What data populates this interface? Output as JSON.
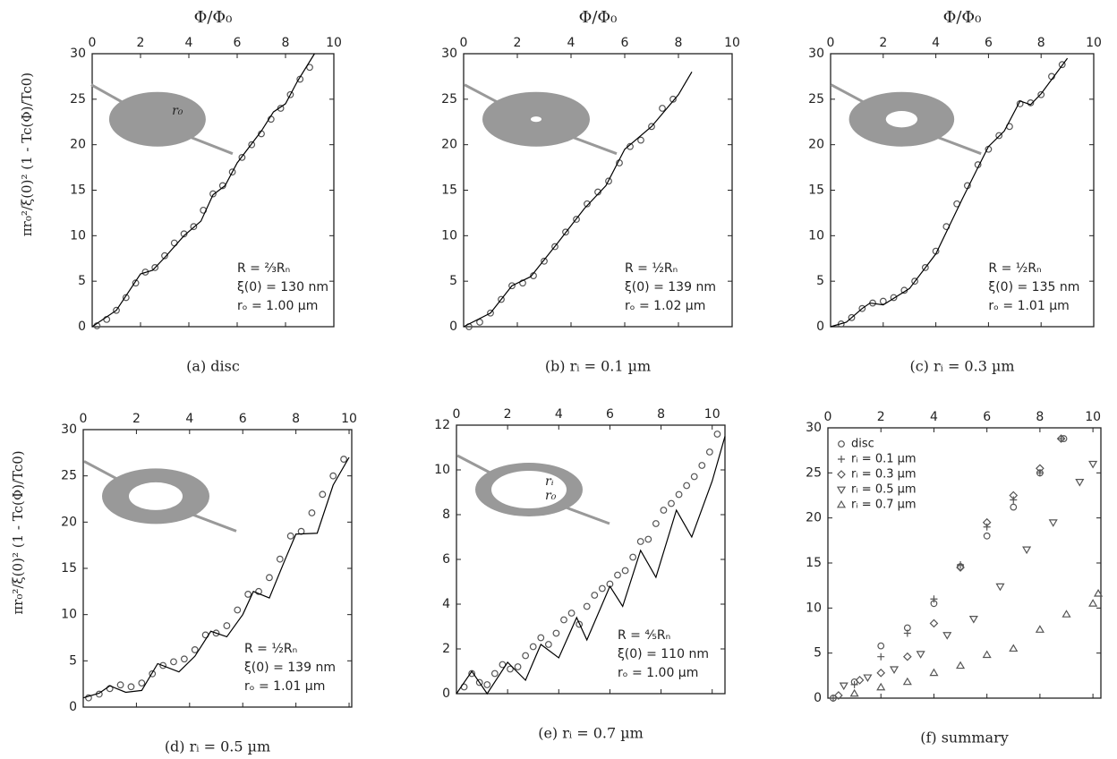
{
  "chart_data": [
    {
      "type": "scatter",
      "title": "Φ/Φ₀",
      "ylabel": "πr₀²/ξ(0)² (1 - Tc(Φ)/Tc0)",
      "caption": "(a) disc",
      "annotations": [
        "R = ⅔Rₙ",
        "ξ(0) = 130 nm",
        "rₒ = 1.00 µm"
      ],
      "inset_labels": [
        "r₀"
      ],
      "xlim": [
        0,
        10
      ],
      "ylim": [
        0,
        30
      ],
      "xticks": [
        0,
        2,
        4,
        6,
        8,
        10
      ],
      "yticks": [
        0,
        5,
        10,
        15,
        20,
        25,
        30
      ],
      "series": [
        {
          "color": "#555",
          "style": "markers",
          "marker": "circle",
          "x": [
            0.2,
            0.6,
            1,
            1.4,
            1.8,
            2.2,
            2.6,
            3,
            3.4,
            3.8,
            4.2,
            4.6,
            5,
            5.4,
            5.8,
            6.2,
            6.6,
            7,
            7.4,
            7.8,
            8.2,
            8.6,
            9
          ],
          "values": [
            0.1,
            0.8,
            1.8,
            3.2,
            4.8,
            6,
            6.5,
            7.8,
            9.2,
            10.2,
            11,
            12.8,
            14.6,
            15.5,
            17,
            18.6,
            20,
            21.2,
            22.8,
            24,
            25.5,
            27.2,
            28.5
          ]
        },
        {
          "color": "#000",
          "style": "line",
          "x": [
            0,
            1,
            2,
            2.5,
            3,
            3.8,
            4.5,
            5,
            5.5,
            6,
            7,
            7.5,
            8,
            8.5,
            9.2
          ],
          "values": [
            0,
            1.8,
            5.8,
            6.2,
            7.6,
            10,
            11.6,
            14.5,
            15.5,
            18,
            21.5,
            23.6,
            24.5,
            27,
            30
          ]
        }
      ]
    },
    {
      "type": "scatter",
      "title": "Φ/Φ₀",
      "caption": "(b) rᵢ = 0.1 µm",
      "annotations": [
        "R = ½Rₙ",
        "ξ(0) = 139 nm",
        "rₒ = 1.02 µm"
      ],
      "xlim": [
        0,
        10
      ],
      "ylim": [
        0,
        30
      ],
      "xticks": [
        0,
        2,
        4,
        6,
        8,
        10
      ],
      "yticks": [
        0,
        5,
        10,
        15,
        20,
        25,
        30
      ],
      "series": [
        {
          "color": "#555",
          "style": "markers",
          "marker": "circle",
          "x": [
            0.2,
            0.6,
            1,
            1.4,
            1.8,
            2.2,
            2.6,
            3,
            3.4,
            3.8,
            4.2,
            4.6,
            5,
            5.4,
            5.8,
            6.2,
            6.6,
            7,
            7.4,
            7.8
          ],
          "values": [
            0,
            0.5,
            1.5,
            3,
            4.5,
            4.8,
            5.6,
            7.2,
            8.8,
            10.4,
            11.8,
            13.5,
            14.8,
            16,
            18,
            19.8,
            20.5,
            22,
            24,
            25
          ]
        },
        {
          "color": "#000",
          "style": "line",
          "x": [
            0,
            1,
            1.8,
            2.5,
            3.5,
            4.5,
            5.3,
            6,
            7,
            8,
            8.5
          ],
          "values": [
            0,
            1.5,
            4.5,
            5.5,
            9.2,
            13,
            15.5,
            19.5,
            22,
            25.5,
            28
          ]
        }
      ]
    },
    {
      "type": "scatter",
      "title": "Φ/Φ₀",
      "caption": "(c) rᵢ = 0.3 µm",
      "annotations": [
        "R = ½Rₙ",
        "ξ(0) = 135 nm",
        "rₒ = 1.01 µm"
      ],
      "xlim": [
        0,
        10
      ],
      "ylim": [
        0,
        30
      ],
      "xticks": [
        0,
        2,
        4,
        6,
        8,
        10
      ],
      "yticks": [
        0,
        5,
        10,
        15,
        20,
        25,
        30
      ],
      "series": [
        {
          "color": "#555",
          "style": "markers",
          "marker": "circle",
          "x": [
            0.4,
            0.8,
            1.2,
            1.6,
            2,
            2.4,
            2.8,
            3.2,
            3.6,
            4,
            4.4,
            4.8,
            5.2,
            5.6,
            6,
            6.4,
            6.8,
            7.2,
            7.6,
            8,
            8.4,
            8.8
          ],
          "values": [
            0.3,
            1,
            2,
            2.6,
            2.8,
            3.2,
            4,
            5,
            6.5,
            8.3,
            11,
            13.5,
            15.5,
            17.8,
            19.5,
            21,
            22,
            24.5,
            24.6,
            25.5,
            27.5,
            28.8
          ]
        },
        {
          "color": "#000",
          "style": "line",
          "x": [
            0,
            0.6,
            1.2,
            1.5,
            2,
            3,
            4,
            4.5,
            5,
            5.6,
            6,
            6.6,
            7.2,
            7.6,
            8,
            9
          ],
          "values": [
            0,
            0.5,
            2,
            2.6,
            2.4,
            4.2,
            8,
            11,
            14,
            17.5,
            19.8,
            21.5,
            24.8,
            24.4,
            25.6,
            29.5
          ]
        }
      ]
    },
    {
      "type": "scatter",
      "ylabel": "πr₀²/ξ(0)² (1 - Tc(Φ)/Tc0)",
      "caption": "(d) rᵢ = 0.5 µm",
      "annotations": [
        "R = ½Rₙ",
        "ξ(0) = 139 nm",
        "rₒ = 1.01 µm"
      ],
      "xlim": [
        0,
        10.1
      ],
      "ylim": [
        0,
        30
      ],
      "xticks": [
        0,
        2,
        4,
        6,
        8,
        10
      ],
      "yticks": [
        0,
        5,
        10,
        15,
        20,
        25,
        30
      ],
      "series": [
        {
          "color": "#555",
          "style": "markers",
          "marker": "circle",
          "x": [
            0.2,
            0.6,
            1,
            1.4,
            1.8,
            2.2,
            2.6,
            3,
            3.4,
            3.8,
            4.2,
            4.6,
            5,
            5.4,
            5.8,
            6.2,
            6.6,
            7,
            7.4,
            7.8,
            8.2,
            8.6,
            9,
            9.4,
            9.8
          ],
          "values": [
            1,
            1.4,
            2,
            2.4,
            2.2,
            2.6,
            3.6,
            4.5,
            4.9,
            5.2,
            6.2,
            7.8,
            8,
            8.8,
            10.5,
            12.2,
            12.5,
            14,
            16,
            18.5,
            19,
            21,
            23,
            25,
            26.8
          ]
        },
        {
          "color": "#000",
          "style": "line",
          "x": [
            0,
            0.6,
            1,
            1.6,
            2.2,
            2.8,
            3.6,
            4.2,
            4.8,
            5.4,
            6,
            6.4,
            7,
            7.6,
            8,
            8.8,
            9.4,
            10
          ],
          "values": [
            1,
            1.5,
            2.3,
            1.6,
            1.8,
            4.7,
            3.8,
            5.5,
            8.2,
            7.6,
            10,
            12.5,
            11.8,
            16,
            18.7,
            18.8,
            24,
            27
          ]
        }
      ]
    },
    {
      "type": "scatter",
      "caption": "(e) rᵢ = 0.7 µm",
      "inset_labels": [
        "rᵢ",
        "r₀"
      ],
      "annotations": [
        "R = ⅘Rₙ",
        "ξ(0) = 110 nm",
        "rₒ = 1.00 µm"
      ],
      "xlim": [
        0,
        10.5
      ],
      "ylim": [
        0,
        12
      ],
      "xticks": [
        0,
        2,
        4,
        6,
        8,
        10
      ],
      "yticks": [
        0,
        2,
        4,
        6,
        8,
        10,
        12
      ],
      "series": [
        {
          "color": "#555",
          "style": "markers",
          "marker": "circle",
          "x": [
            0.3,
            0.6,
            0.9,
            1.2,
            1.5,
            1.8,
            2.1,
            2.4,
            2.7,
            3,
            3.3,
            3.6,
            3.9,
            4.2,
            4.5,
            4.8,
            5.1,
            5.4,
            5.7,
            6,
            6.3,
            6.6,
            6.9,
            7.2,
            7.5,
            7.8,
            8.1,
            8.4,
            8.7,
            9,
            9.3,
            9.6,
            9.9,
            10.2
          ],
          "values": [
            0.3,
            0.9,
            0.5,
            0.4,
            0.9,
            1.3,
            1.1,
            1.2,
            1.7,
            2.1,
            2.5,
            2.2,
            2.7,
            3.3,
            3.6,
            3.1,
            3.9,
            4.4,
            4.7,
            4.9,
            5.3,
            5.5,
            6.1,
            6.8,
            6.9,
            7.6,
            8.2,
            8.5,
            8.9,
            9.3,
            9.7,
            10.2,
            10.8,
            11.6
          ]
        },
        {
          "color": "#000",
          "style": "line",
          "x": [
            0,
            0.6,
            1.2,
            2,
            2.7,
            3.3,
            4,
            4.7,
            5.1,
            6,
            6.5,
            7.2,
            7.8,
            8.6,
            9.2,
            10,
            10.5
          ],
          "values": [
            0,
            1,
            0,
            1.4,
            0.6,
            2.2,
            1.6,
            3.4,
            2.4,
            4.8,
            3.9,
            6.4,
            5.2,
            8.2,
            7,
            9.5,
            11.5
          ]
        }
      ]
    },
    {
      "type": "scatter",
      "caption": "(f) summary",
      "legend": "upper left",
      "xlim": [
        0,
        10.3
      ],
      "ylim": [
        0,
        30
      ],
      "xticks": [
        0,
        2,
        4,
        6,
        8,
        10
      ],
      "yticks": [
        0,
        5,
        10,
        15,
        20,
        25,
        30
      ],
      "series": [
        {
          "name": "disc",
          "color": "#555",
          "style": "markers",
          "marker": "circle",
          "x": [
            0.2,
            1,
            2,
            3,
            4,
            5,
            6,
            7,
            8,
            8.9
          ],
          "values": [
            0,
            1.8,
            5.8,
            7.8,
            10.5,
            14.6,
            18,
            21.2,
            25,
            28.8
          ]
        },
        {
          "name": "rᵢ = 0.1 µm",
          "color": "#555",
          "style": "markers",
          "marker": "plus",
          "x": [
            0.2,
            1,
            2,
            3,
            4,
            5,
            6,
            7,
            8,
            8.8
          ],
          "values": [
            0,
            1.5,
            4.6,
            7.2,
            11,
            14.8,
            19,
            22,
            25,
            28.8
          ]
        },
        {
          "name": "rᵢ = 0.3 µm",
          "color": "#555",
          "style": "markers",
          "marker": "diamond",
          "x": [
            0.4,
            1.2,
            2,
            3,
            4,
            5,
            6,
            7,
            8,
            8.8
          ],
          "values": [
            0.3,
            2,
            2.8,
            4.6,
            8.3,
            14.5,
            19.5,
            22.5,
            25.5,
            28.8
          ]
        },
        {
          "name": "rᵢ = 0.5 µm",
          "color": "#555",
          "style": "markers",
          "marker": "triangle-down",
          "x": [
            0.6,
            1.5,
            2.5,
            3.5,
            4.5,
            5.5,
            6.5,
            7.5,
            8.5,
            9.5,
            10
          ],
          "values": [
            1.4,
            2.3,
            3.2,
            4.9,
            7,
            8.8,
            12.4,
            16.5,
            19.5,
            24,
            26
          ]
        },
        {
          "name": "rᵢ = 0.7 µm",
          "color": "#555",
          "style": "markers",
          "marker": "triangle-up",
          "x": [
            1,
            2,
            3,
            4,
            5,
            6,
            7,
            8,
            9,
            10,
            10.2
          ],
          "values": [
            0.5,
            1.2,
            1.8,
            2.8,
            3.6,
            4.8,
            5.5,
            7.6,
            9.3,
            10.5,
            11.6
          ]
        }
      ]
    }
  ]
}
